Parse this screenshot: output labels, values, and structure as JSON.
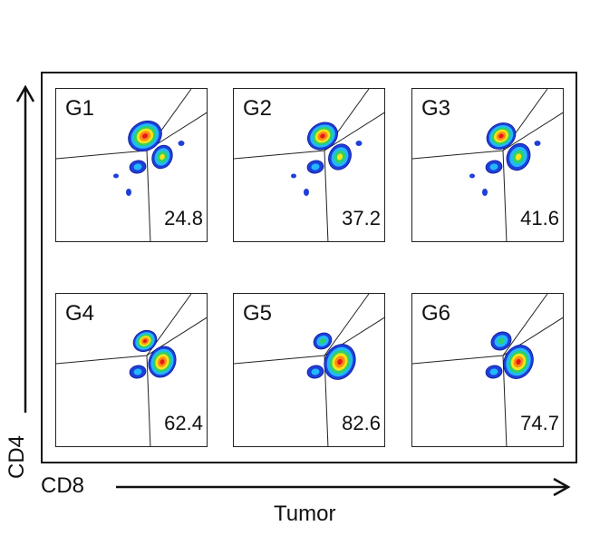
{
  "chart_data": {
    "type": "scatter",
    "subtype": "flow-cytometry density contour panels",
    "xlabel": "CD8",
    "ylabel": "CD4",
    "footer": "Tumor",
    "panels": [
      {
        "label": "G1",
        "value": "24.8",
        "cd8_fraction": 0.248
      },
      {
        "label": "G2",
        "value": "37.2",
        "cd8_fraction": 0.372
      },
      {
        "label": "G3",
        "value": "41.6",
        "cd8_fraction": 0.416
      },
      {
        "label": "G4",
        "value": "62.4",
        "cd8_fraction": 0.624
      },
      {
        "label": "G5",
        "value": "82.6",
        "cd8_fraction": 0.826
      },
      {
        "label": "G6",
        "value": "74.7",
        "cd8_fraction": 0.747
      }
    ],
    "density_colors": [
      "#1f3fd8",
      "#22b8ff",
      "#2fd06a",
      "#f5e51a",
      "#ff8a14",
      "#e5191c"
    ],
    "grid": false
  }
}
